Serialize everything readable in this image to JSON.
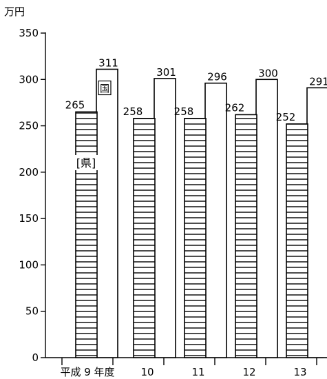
{
  "chart_data": {
    "type": "bar",
    "unit_label": "万円",
    "categories": [
      "平成 9 年度",
      "10",
      "11",
      "12",
      "13"
    ],
    "ylim": [
      0,
      350
    ],
    "yticks": [
      0,
      50,
      100,
      150,
      200,
      250,
      300,
      350
    ],
    "series": [
      {
        "name": "県",
        "values": [
          265,
          258,
          258,
          262,
          252
        ],
        "pattern": "horizontal-hatch"
      },
      {
        "name": "国",
        "values": [
          311,
          301,
          296,
          300,
          291
        ],
        "pattern": "none"
      }
    ],
    "grid": false,
    "legend": "inline labels on first category bars"
  }
}
